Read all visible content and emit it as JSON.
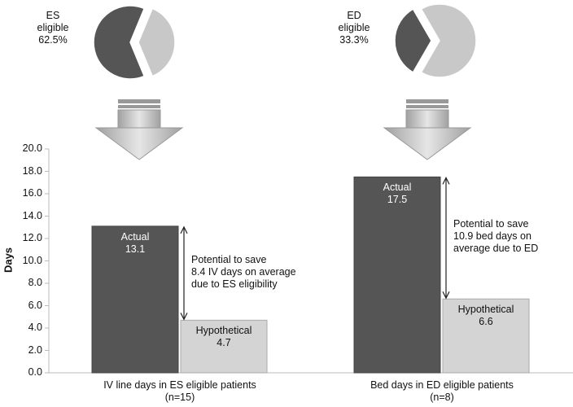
{
  "chart_data": [
    {
      "type": "pie",
      "label": "ES\neligible",
      "values": [
        62.5,
        37.5
      ],
      "value_labels": [
        "62.5%",
        null
      ],
      "colors": [
        "#555555",
        "#c8c8c8"
      ]
    },
    {
      "type": "pie",
      "label": "ED\neligible",
      "values": [
        33.3,
        66.7
      ],
      "value_labels": [
        "33.3%",
        null
      ],
      "colors": [
        "#555555",
        "#c8c8c8"
      ]
    },
    {
      "type": "bar",
      "categories": [
        "IV line days in ES eligible patients\n(n=15)",
        "Bed days in ED eligible patients\n(n=8)"
      ],
      "series": [
        {
          "name": "Actual",
          "color": "#555555",
          "values": [
            13.1,
            17.5
          ]
        },
        {
          "name": "Hypothetical",
          "color": "#d4d4d4",
          "values": [
            4.7,
            6.6
          ]
        }
      ],
      "ylabel": "Days",
      "ylim": [
        0,
        20
      ],
      "yticks": [
        {
          "value": 0,
          "label": "0.0"
        },
        {
          "value": 2,
          "label": "2.0"
        },
        {
          "value": 4,
          "label": "4.0"
        },
        {
          "value": 6,
          "label": "6.0"
        },
        {
          "value": 8,
          "label": "8.0"
        },
        {
          "value": 10,
          "label": "10.0"
        },
        {
          "value": 12,
          "label": "12.0"
        },
        {
          "value": 14,
          "label": "14.0"
        },
        {
          "value": 16,
          "label": "16.0"
        },
        {
          "value": 18,
          "label": "18.0"
        },
        {
          "value": 20,
          "label": "20.0"
        }
      ],
      "annotations": [
        "Potential to save\n8.4 IV days on average\ndue to ES eligibility",
        "Potential to save\n10.9 bed days on\naverage due to ED"
      ]
    }
  ]
}
